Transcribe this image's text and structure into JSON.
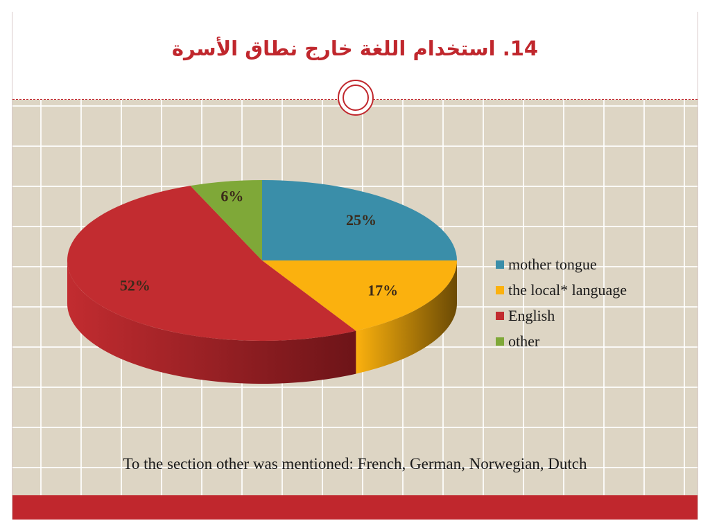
{
  "slide": {
    "title": "14. استخدام اللغة خارج نطاق الأسرة",
    "note": "To the section other was mentioned: French, German, Norwegian, Dutch"
  },
  "colors": {
    "accent": "#c0272d",
    "grid_background": "#ddd5c4"
  },
  "chart_data": {
    "type": "pie",
    "style": "3d",
    "legend_position": "right",
    "categories": [
      "mother tongue",
      "the local* language",
      "English",
      "other"
    ],
    "values": [
      25,
      17,
      52,
      6
    ],
    "labels": [
      "25%",
      "17%",
      "52%",
      "6%"
    ],
    "colors": [
      "#3a8ea9",
      "#fbb10e",
      "#c22c30",
      "#7fa838"
    ],
    "side_colors": [
      "#245a6b",
      "#6b4a04",
      "#6d1418",
      "#4b6621"
    ]
  }
}
